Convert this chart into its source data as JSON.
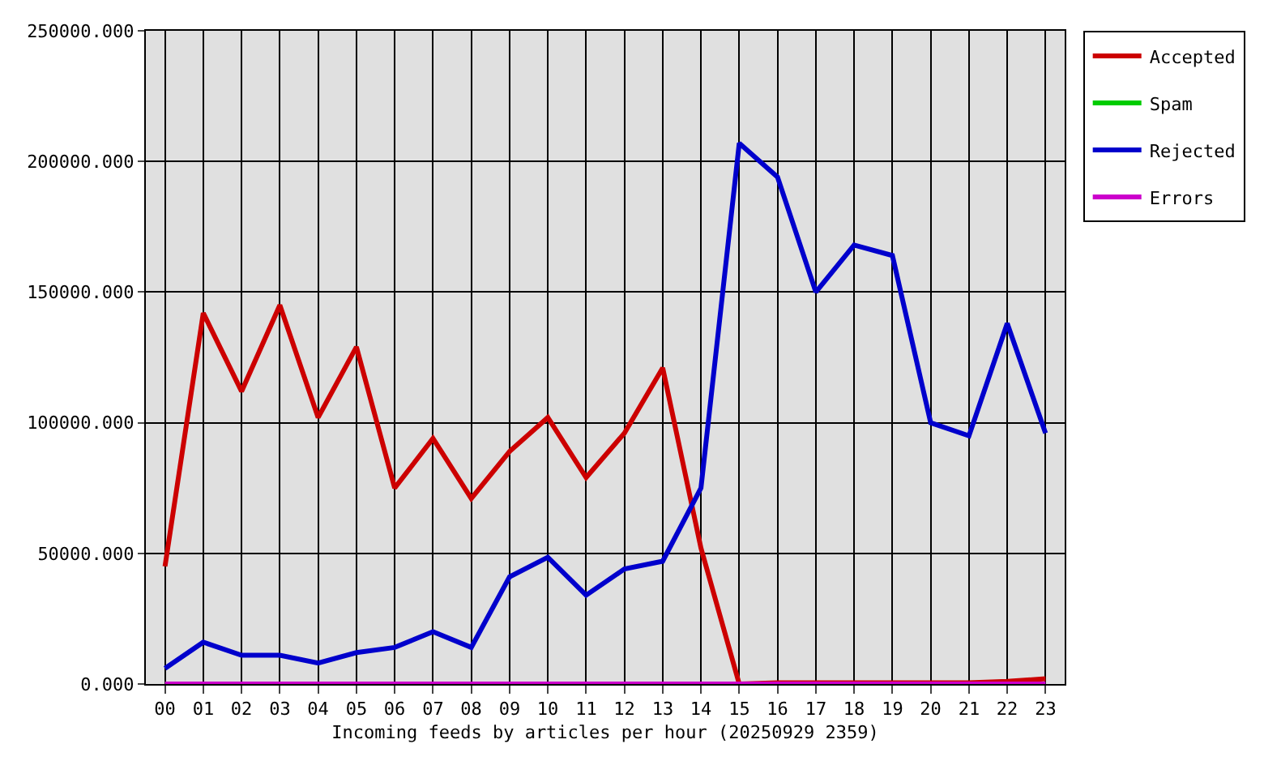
{
  "chart_data": {
    "type": "line",
    "xlabel": "Incoming feeds by articles per hour (20250929 2359)",
    "categories": [
      "00",
      "01",
      "02",
      "03",
      "04",
      "05",
      "06",
      "07",
      "08",
      "09",
      "10",
      "11",
      "12",
      "13",
      "14",
      "15",
      "16",
      "17",
      "18",
      "19",
      "20",
      "21",
      "22",
      "23"
    ],
    "series": [
      {
        "name": "Accepted",
        "color": "#cc0000",
        "values": [
          45000,
          142000,
          112000,
          145000,
          102000,
          129000,
          75000,
          94000,
          71000,
          89000,
          102000,
          79000,
          96000,
          121000,
          52000,
          0,
          500,
          500,
          500,
          500,
          500,
          500,
          1000,
          2000
        ]
      },
      {
        "name": "Spam",
        "color": "#00cc00",
        "values": [
          null,
          null,
          null,
          null,
          null,
          null,
          null,
          null,
          null,
          null,
          null,
          null,
          null,
          null,
          null,
          null,
          null,
          null,
          null,
          null,
          null,
          null,
          null,
          null
        ]
      },
      {
        "name": "Rejected",
        "color": "#0000cc",
        "values": [
          6000,
          16000,
          11000,
          11000,
          8000,
          12000,
          14000,
          20000,
          14000,
          41000,
          48500,
          34000,
          44000,
          47000,
          75000,
          207000,
          194000,
          150000,
          168000,
          164000,
          100000,
          95000,
          138000,
          96000
        ]
      },
      {
        "name": "Errors",
        "color": "#cc00cc",
        "values": [
          0,
          0,
          0,
          0,
          0,
          0,
          0,
          0,
          0,
          0,
          0,
          0,
          0,
          0,
          0,
          0,
          0,
          0,
          0,
          0,
          0,
          0,
          0,
          0
        ]
      }
    ],
    "ylim": [
      0,
      250000
    ],
    "yticks": [
      {
        "value": 0,
        "label": "0.000"
      },
      {
        "value": 50000,
        "label": "50000.000"
      },
      {
        "value": 100000,
        "label": "100000.000"
      },
      {
        "value": 150000,
        "label": "150000.000"
      },
      {
        "value": 200000,
        "label": "200000.000"
      },
      {
        "value": 250000,
        "label": "250000.000"
      }
    ],
    "grid": true,
    "legend": "top right",
    "marker": "none",
    "line_style": "solid"
  }
}
